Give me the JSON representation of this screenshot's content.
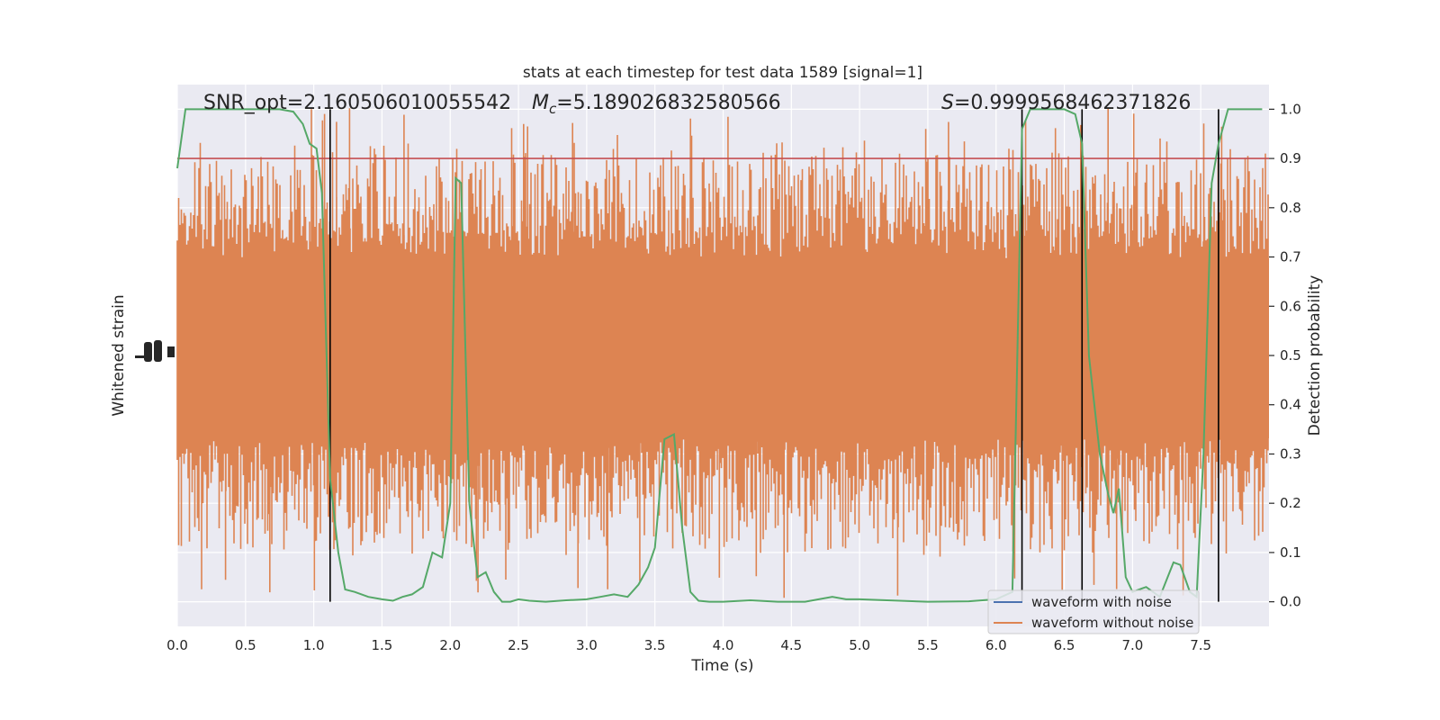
{
  "chart_data": {
    "type": "line",
    "title": "stats at each timestep for test data 1589 [signal=1]",
    "xlabel": "Time (s)",
    "ylabel_left": "Whitened strain",
    "ylabel_right": "Detection probability",
    "xlim": [
      0,
      8
    ],
    "ylim_right": [
      -0.05,
      1.05
    ],
    "x_ticks": [
      "0.0",
      "0.5",
      "1.0",
      "1.5",
      "2.0",
      "2.5",
      "3.0",
      "3.5",
      "4.0",
      "4.5",
      "5.0",
      "5.5",
      "6.0",
      "6.5",
      "7.0",
      "7.5"
    ],
    "x_tick_values": [
      0,
      0.5,
      1,
      1.5,
      2,
      2.5,
      3,
      3.5,
      4,
      4.5,
      5,
      5.5,
      6,
      6.5,
      7,
      7.5
    ],
    "y_right_ticks": [
      "0.0",
      "0.1",
      "0.2",
      "0.3",
      "0.4",
      "0.5",
      "0.6",
      "0.7",
      "0.8",
      "0.9",
      "1.0"
    ],
    "y_right_tick_values": [
      0,
      0.1,
      0.2,
      0.3,
      0.4,
      0.5,
      0.6,
      0.7,
      0.8,
      0.9,
      1.0
    ],
    "grid": true,
    "legend_position": "bottom-right",
    "annotations": {
      "snr": "SNR_opt=2.160506010055542",
      "mc_symbol": "M",
      "mc_sub": "c",
      "mc_value": "=5.189026832580566",
      "s_symbol": "S",
      "s_value": "=0.9999568462371826"
    },
    "threshold": 0.9,
    "detection_lines_x": [
      1.12,
      6.19,
      6.63,
      7.63
    ],
    "series": [
      {
        "name": "waveform with noise",
        "color": "#4c72b0"
      },
      {
        "name": "waveform without noise",
        "color": "#dd8452"
      },
      {
        "color": "#55a868",
        "x": [
          0,
          0.06,
          0.15,
          0.3,
          0.45,
          0.6,
          0.75,
          0.85,
          0.92,
          0.97,
          1.02,
          1.06,
          1.12,
          1.18,
          1.23,
          1.3,
          1.4,
          1.5,
          1.58,
          1.65,
          1.72,
          1.8,
          1.87,
          1.94,
          2.0,
          2.04,
          2.08,
          2.14,
          2.2,
          2.26,
          2.32,
          2.38,
          2.44,
          2.5,
          2.58,
          2.7,
          2.85,
          3.0,
          3.1,
          3.2,
          3.3,
          3.38,
          3.45,
          3.5,
          3.57,
          3.64,
          3.7,
          3.76,
          3.82,
          3.9,
          4.0,
          4.2,
          4.4,
          4.6,
          4.8,
          4.9,
          5.0,
          5.2,
          5.5,
          5.8,
          6.0,
          6.12,
          6.19,
          6.25,
          6.35,
          6.5,
          6.58,
          6.63,
          6.68,
          6.76,
          6.82,
          6.86,
          6.9,
          6.95,
          7.0,
          7.1,
          7.2,
          7.3,
          7.35,
          7.42,
          7.47,
          7.52,
          7.58,
          7.63,
          7.7,
          7.78,
          7.9,
          7.95
        ],
        "values": [
          0.88,
          1.0,
          1.0,
          1.0,
          1.0,
          1.0,
          1.0,
          0.995,
          0.97,
          0.93,
          0.92,
          0.83,
          0.25,
          0.1,
          0.025,
          0.02,
          0.01,
          0.005,
          0.002,
          0.01,
          0.015,
          0.03,
          0.1,
          0.09,
          0.2,
          0.86,
          0.85,
          0.2,
          0.05,
          0.06,
          0.02,
          0.0,
          0.0,
          0.005,
          0.002,
          0.0,
          0.003,
          0.005,
          0.01,
          0.015,
          0.01,
          0.035,
          0.07,
          0.11,
          0.33,
          0.34,
          0.15,
          0.02,
          0.002,
          0.0,
          0.0,
          0.003,
          0.0,
          0.0,
          0.01,
          0.005,
          0.005,
          0.003,
          0.0,
          0.001,
          0.005,
          0.02,
          0.96,
          1.0,
          1.0,
          1.0,
          0.99,
          0.93,
          0.5,
          0.3,
          0.22,
          0.18,
          0.23,
          0.05,
          0.02,
          0.03,
          0.01,
          0.08,
          0.075,
          0.02,
          0.01,
          0.3,
          0.85,
          0.93,
          1.0,
          1.0,
          1.0,
          1.0
        ]
      }
    ]
  }
}
